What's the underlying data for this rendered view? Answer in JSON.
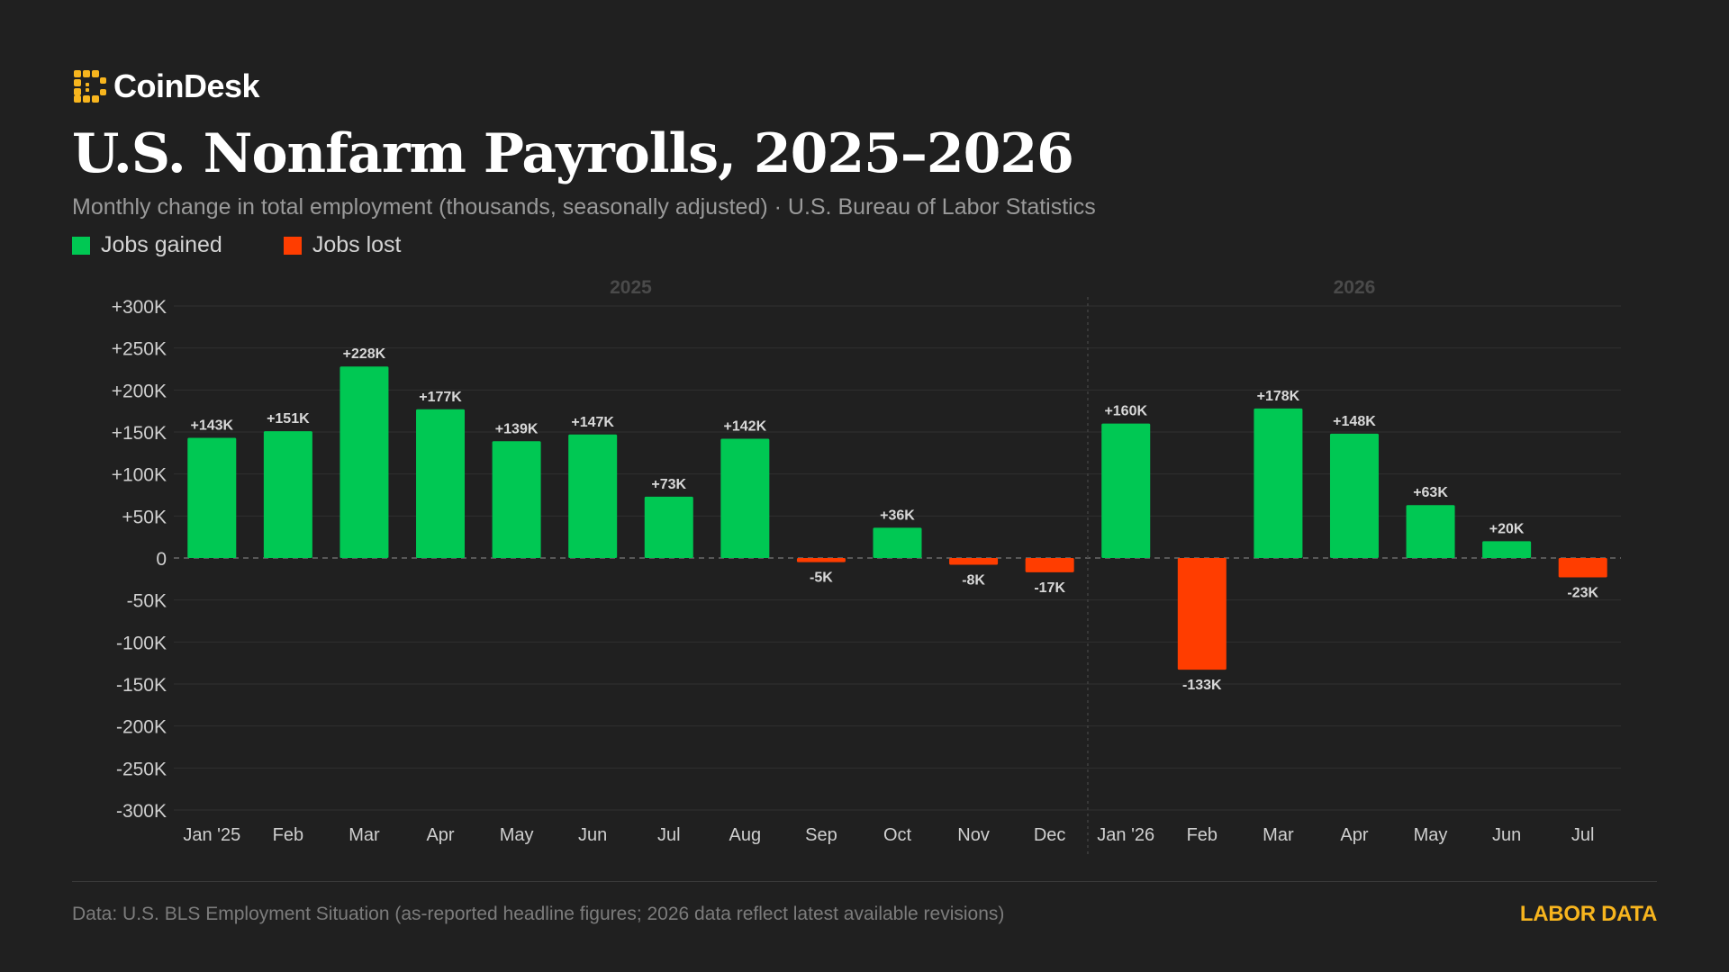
{
  "brand": {
    "name": "CoinDesk",
    "icon": "coindesk-logo-icon",
    "color": "#f7b51e"
  },
  "title": "U.S. Nonfarm Payrolls, 2025–2026",
  "subtitle": "Monthly change in total employment (thousands, seasonally adjusted) · U.S. Bureau of Labor Statistics",
  "legend": {
    "gained": {
      "label": "Jobs gained",
      "color": "#00c853"
    },
    "lost": {
      "label": "Jobs lost",
      "color": "#ff3d00"
    }
  },
  "footer": {
    "note": "Data: U.S. BLS Employment Situation (as-reported headline figures; 2026 data reflect latest available revisions)",
    "tag": "LABOR DATA",
    "tag_color": "#f7b51e"
  },
  "chart_data": {
    "type": "bar",
    "categories": [
      "Jan '25",
      "Feb",
      "Mar",
      "Apr",
      "May",
      "Jun",
      "Jul",
      "Aug",
      "Sep",
      "Oct",
      "Nov",
      "Dec",
      "Jan '26",
      "Feb",
      "Mar",
      "Apr",
      "May",
      "Jun",
      "Jul"
    ],
    "values": [
      143,
      151,
      228,
      177,
      139,
      147,
      73,
      142,
      -5,
      36,
      -8,
      -17,
      160,
      -133,
      178,
      148,
      63,
      20,
      -23
    ],
    "data_labels": [
      "+143K",
      "+151K",
      "+228K",
      "+177K",
      "+139K",
      "+147K",
      "+73K",
      "+142K",
      "-5K",
      "+36K",
      "-8K",
      "-17K",
      "+160K",
      "-133K",
      "+178K",
      "+148K",
      "+63K",
      "+20K",
      "-23K"
    ],
    "ylim": [
      -300,
      300
    ],
    "yticks": [
      300,
      250,
      200,
      150,
      100,
      50,
      0,
      -50,
      -100,
      -150,
      -200,
      -250,
      -300
    ],
    "ytick_labels": [
      "+300K",
      "+250K",
      "+200K",
      "+150K",
      "+100K",
      "+50K",
      "0",
      "-50K",
      "-100K",
      "-150K",
      "-200K",
      "-250K",
      "-300K"
    ],
    "groups": [
      {
        "label": "2025",
        "start": 0,
        "end": 11
      },
      {
        "label": "2026",
        "start": 12,
        "end": 18
      }
    ],
    "positive_color": "#00c853",
    "negative_color": "#ff3d00",
    "grid": true,
    "zero_line": "dashed"
  }
}
